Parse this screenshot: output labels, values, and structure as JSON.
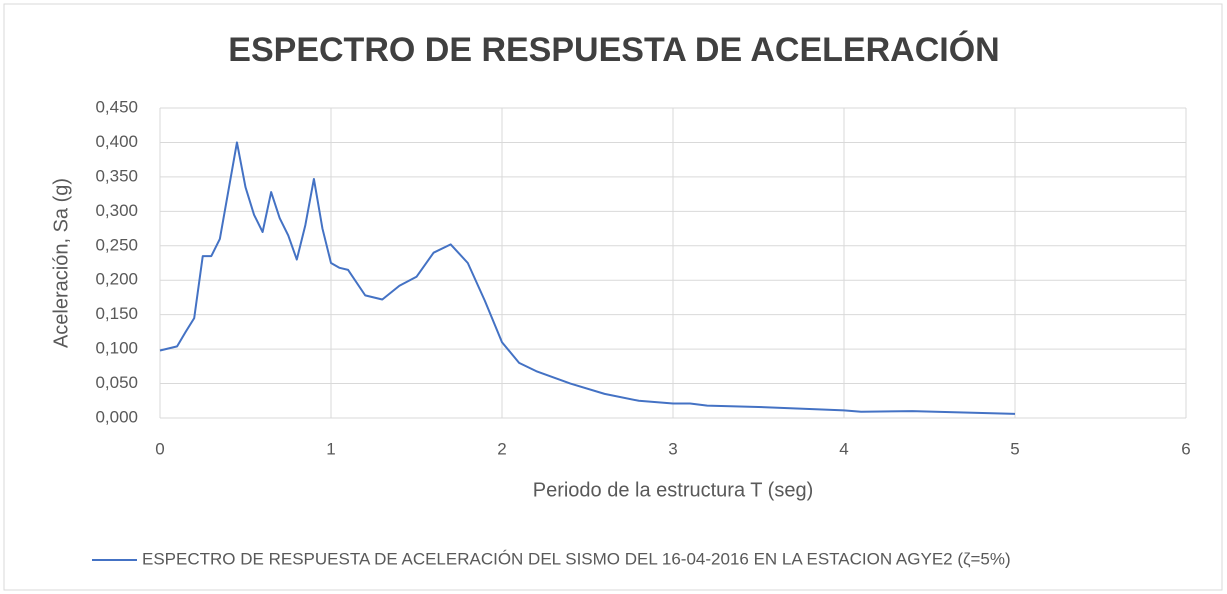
{
  "chart_data": {
    "type": "line",
    "title": "ESPECTRO DE RESPUESTA DE ACELERACIÓN",
    "x_label": "Periodo de la estructura T (seg)",
    "y_label": "Aceleración, Sa (g)",
    "x": [
      0,
      0.1,
      0.15,
      0.2,
      0.25,
      0.3,
      0.35,
      0.4,
      0.45,
      0.5,
      0.55,
      0.6,
      0.65,
      0.7,
      0.75,
      0.8,
      0.85,
      0.9,
      0.95,
      1.0,
      1.05,
      1.1,
      1.2,
      1.3,
      1.4,
      1.5,
      1.6,
      1.7,
      1.8,
      1.9,
      2.0,
      2.1,
      2.2,
      2.4,
      2.6,
      2.8,
      3.0,
      3.1,
      3.2,
      3.5,
      4.0,
      4.1,
      4.4,
      4.7,
      5.0
    ],
    "series": [
      {
        "name": "ESPECTRO DE RESPUESTA  DE ACELERACIÓN  DEL SISMO DEL 16-04-2016 EN LA ESTACION AGYE2 (ζ=5%)",
        "color": "#4472c4",
        "values": [
          0.098,
          0.104,
          0.125,
          0.145,
          0.235,
          0.235,
          0.26,
          0.33,
          0.4,
          0.335,
          0.295,
          0.27,
          0.328,
          0.29,
          0.265,
          0.23,
          0.28,
          0.347,
          0.275,
          0.225,
          0.218,
          0.215,
          0.178,
          0.172,
          0.192,
          0.205,
          0.24,
          0.252,
          0.225,
          0.17,
          0.11,
          0.08,
          0.068,
          0.05,
          0.035,
          0.025,
          0.021,
          0.021,
          0.018,
          0.016,
          0.011,
          0.009,
          0.01,
          0.008,
          0.006
        ]
      }
    ],
    "xlim": [
      0,
      6
    ],
    "xticks": [
      0,
      1,
      2,
      3,
      4,
      5,
      6
    ],
    "ylim": [
      0,
      0.45
    ],
    "yticks": [
      {
        "value": 0,
        "label": "0,000"
      },
      {
        "value": 0.05,
        "label": "0,050"
      },
      {
        "value": 0.1,
        "label": "0,100"
      },
      {
        "value": 0.15,
        "label": "0,150"
      },
      {
        "value": 0.2,
        "label": "0,200"
      },
      {
        "value": 0.25,
        "label": "0,250"
      },
      {
        "value": 0.3,
        "label": "0,300"
      },
      {
        "value": 0.35,
        "label": "0,350"
      },
      {
        "value": 0.4,
        "label": "0,400"
      },
      {
        "value": 0.45,
        "label": "0,450"
      }
    ],
    "grid": true,
    "legend": "bottom"
  }
}
